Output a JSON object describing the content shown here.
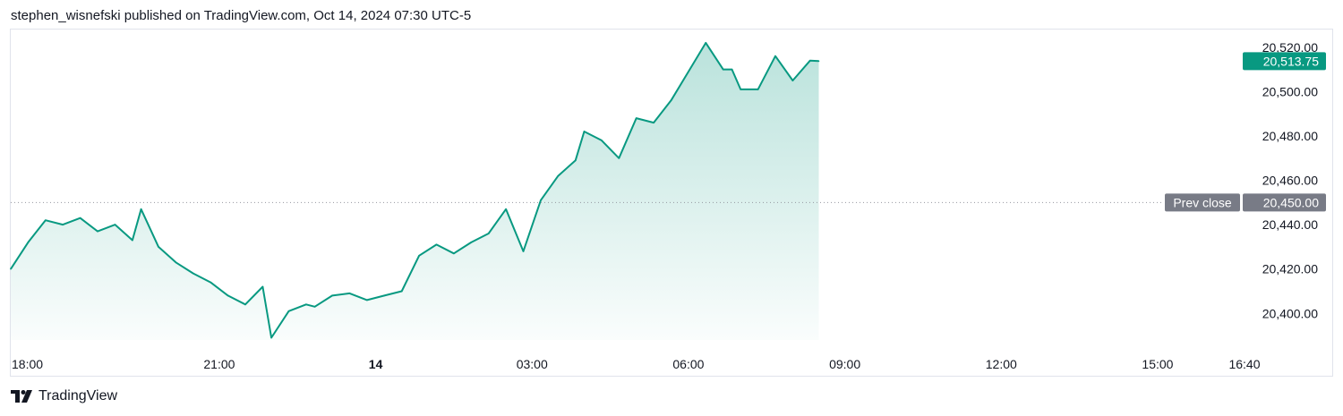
{
  "header": {
    "publisher_line": "stephen_wisnefski published on TradingView.com, Oct 14, 2024 07:30 UTC-5"
  },
  "footer": {
    "brand": "TradingView",
    "logo_icon": "tradingview-logo-icon"
  },
  "colors": {
    "line": "#089981",
    "last_price_bg": "#089981",
    "prev_close_bg": "#787b86",
    "grid_dots": "#9598a1"
  },
  "chart_data": {
    "type": "area",
    "title": "",
    "xlabel": "",
    "ylabel": "",
    "x_ticks": [
      "18:00",
      "21:00",
      "14",
      "03:00",
      "06:00",
      "09:00",
      "12:00",
      "15:00",
      "16:40"
    ],
    "y_ticks": [
      "20,520.00",
      "20,500.00",
      "20,480.00",
      "20,460.00",
      "20,440.00",
      "20,420.00",
      "20,400.00"
    ],
    "ylim": [
      20388,
      20528
    ],
    "last_price": 20513.75,
    "last_price_label": "20,513.75",
    "prev_close": 20450.0,
    "prev_close_label": "20,450.00",
    "prev_close_tag": "Prev close",
    "grid": false,
    "series": [
      {
        "x": [
          "17:00",
          "17:20",
          "17:40",
          "18:00",
          "18:20",
          "18:40",
          "19:00",
          "19:20",
          "19:30",
          "19:50",
          "20:10",
          "20:30",
          "20:50",
          "21:10",
          "21:30",
          "21:50",
          "22:00",
          "22:20",
          "22:40",
          "22:50",
          "23:10",
          "23:30",
          "23:50",
          "00:10",
          "00:30",
          "00:50",
          "01:10",
          "01:30",
          "01:50",
          "02:10",
          "02:30",
          "02:50",
          "03:10",
          "03:30",
          "03:50",
          "04:00",
          "04:20",
          "04:40",
          "05:00",
          "05:20",
          "05:40",
          "06:00",
          "06:20",
          "06:40",
          "06:50",
          "07:00",
          "07:20",
          "07:40",
          "08:00",
          "08:20",
          "08:30"
        ],
        "values": [
          20420,
          20432,
          20442,
          20440,
          20443,
          20437,
          20440,
          20433,
          20447,
          20430,
          20423,
          20418,
          20414,
          20408,
          20404,
          20412,
          20389,
          20401,
          20404,
          20403,
          20408,
          20409,
          20406,
          20408,
          20410,
          20426,
          20431,
          20427,
          20432,
          20436,
          20447,
          20428,
          20451,
          20462,
          20469,
          20482,
          20478,
          20470,
          20488,
          20486,
          20496,
          20509,
          20522,
          20510,
          20510,
          20501,
          20501,
          20516,
          20505,
          20514,
          20513.75
        ]
      }
    ]
  }
}
